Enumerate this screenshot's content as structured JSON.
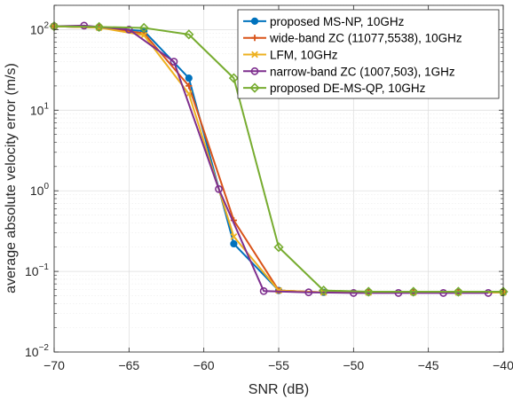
{
  "chart_data": {
    "type": "line",
    "title": "",
    "xlabel": "SNR (dB)",
    "ylabel": "average absolute velocity error (m/s)",
    "xlim": [
      -70,
      -40
    ],
    "ylim": [
      0.01,
      200
    ],
    "yscale": "log",
    "grid": true,
    "legend_position": "top-right",
    "xticks": [
      -70,
      -65,
      -60,
      -55,
      -50,
      -45,
      -40
    ],
    "yticks": [
      {
        "value": 0.01,
        "base": "10",
        "exp": "-2"
      },
      {
        "value": 0.1,
        "base": "10",
        "exp": "-1"
      },
      {
        "value": 1,
        "base": "10",
        "exp": "0"
      },
      {
        "value": 10,
        "base": "10",
        "exp": "1"
      },
      {
        "value": 100,
        "base": "10",
        "exp": "2"
      }
    ],
    "series": [
      {
        "name": "proposed MS-NP, 10GHz",
        "color": "#0072BD",
        "marker": "circle-filled",
        "x": [
          -70,
          -67,
          -64,
          -61,
          -58,
          -55,
          -52,
          -49,
          -46,
          -43,
          -40
        ],
        "y": [
          110,
          106,
          96,
          25,
          0.22,
          0.058,
          0.055,
          0.055,
          0.055,
          0.055,
          0.055
        ]
      },
      {
        "name": "wide-band ZC (11077,5538), 10GHz",
        "color": "#D95319",
        "marker": "plus",
        "x": [
          -70,
          -67,
          -64,
          -61,
          -58,
          -55,
          -52,
          -49,
          -46,
          -43,
          -40
        ],
        "y": [
          110,
          106,
          90,
          20,
          0.43,
          0.058,
          0.055,
          0.055,
          0.055,
          0.055,
          0.055
        ]
      },
      {
        "name": "LFM, 10GHz",
        "color": "#EDB120",
        "marker": "x",
        "x": [
          -70,
          -67,
          -64,
          -61,
          -58,
          -55,
          -52,
          -49,
          -46,
          -43,
          -40
        ],
        "y": [
          110,
          106,
          85,
          16,
          0.27,
          0.058,
          0.055,
          0.055,
          0.055,
          0.055,
          0.055
        ]
      },
      {
        "name": "narrow-band ZC (1007,503), 1GHz",
        "color": "#7E2F8E",
        "marker": "circle-open",
        "x": [
          -70,
          -68,
          -65,
          -62,
          -59,
          -56,
          -53,
          -50,
          -47,
          -44,
          -41
        ],
        "y": [
          110,
          112,
          100,
          40,
          1.05,
          0.057,
          0.055,
          0.054,
          0.054,
          0.054,
          0.054
        ]
      },
      {
        "name": "proposed DE-MS-QP, 10GHz",
        "color": "#77AC30",
        "marker": "diamond",
        "x": [
          -70,
          -67,
          -64,
          -61,
          -58,
          -55,
          -52,
          -49,
          -46,
          -43,
          -40
        ],
        "y": [
          110,
          108,
          105,
          87,
          25,
          0.2,
          0.058,
          0.056,
          0.056,
          0.056,
          0.056
        ]
      }
    ]
  }
}
